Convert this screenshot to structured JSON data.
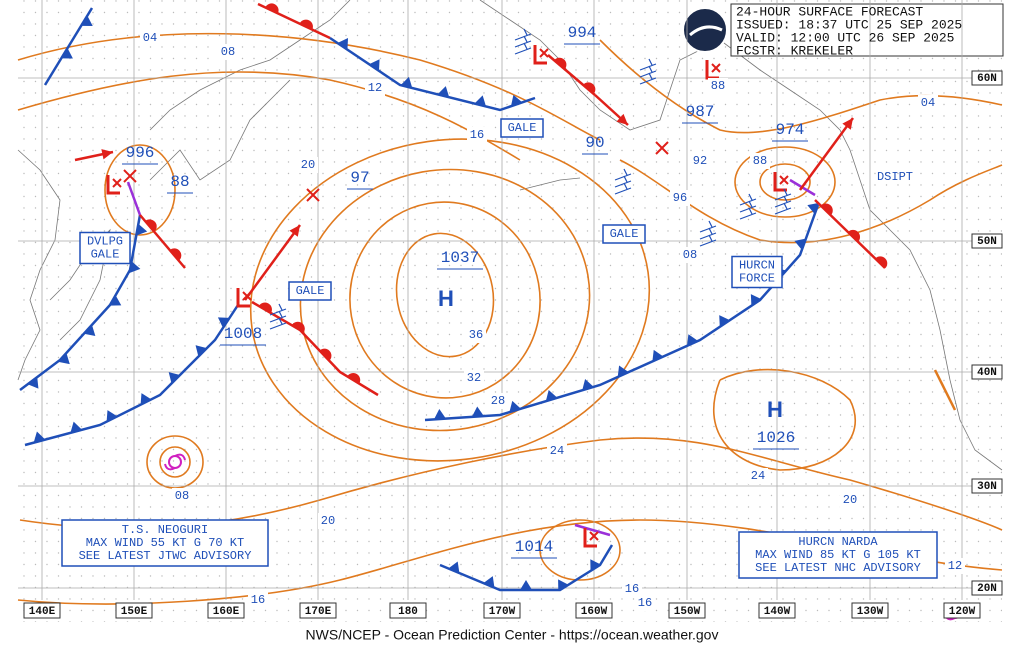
{
  "header": {
    "lines": [
      "24-HOUR SURFACE FORECAST",
      "ISSUED: 18:37 UTC 25 SEP 2025",
      "VALID:  12:00 UTC 26 SEP 2025",
      "FCSTR:  KREKELER"
    ]
  },
  "pressure_labels": [
    "994",
    "987",
    "974",
    "996",
    "88",
    "97",
    "1037",
    "1008",
    "1026",
    "1014",
    "90"
  ],
  "centers": [
    "H",
    "H"
  ],
  "isobar_labels": [
    "04",
    "08",
    "12",
    "16",
    "20",
    "92",
    "96",
    "08",
    "88",
    "88",
    "36",
    "32",
    "28",
    "24",
    "24",
    "20",
    "20",
    "16",
    "16",
    "16",
    "12",
    "08",
    "04"
  ],
  "boxes": [
    {
      "lines": [
        "GALE"
      ]
    },
    {
      "lines": [
        "GALE"
      ]
    },
    {
      "lines": [
        "GALE"
      ]
    },
    {
      "lines": [
        "DVLPG",
        "GALE"
      ]
    },
    {
      "lines": [
        "HURCN",
        "FORCE"
      ]
    }
  ],
  "notes": [
    "DSIPT"
  ],
  "advisories": [
    {
      "lines": [
        "T.S. NEOGURI",
        "MAX WIND 55 KT G 70 KT",
        "SEE LATEST JTWC ADVISORY"
      ]
    },
    {
      "lines": [
        "HURCN NARDA",
        "MAX WIND 85 KT G 105 KT",
        "SEE LATEST NHC ADVISORY"
      ]
    }
  ],
  "lat_labels": [
    "60N",
    "50N",
    "40N",
    "30N",
    "20N"
  ],
  "lon_labels": [
    "140E",
    "150E",
    "160E",
    "170E",
    "180",
    "170W",
    "160W",
    "150W",
    "140W",
    "130W",
    "120W"
  ],
  "footer": "NWS/NCEP - Ocean Prediction Center - https://ocean.weather.gov"
}
